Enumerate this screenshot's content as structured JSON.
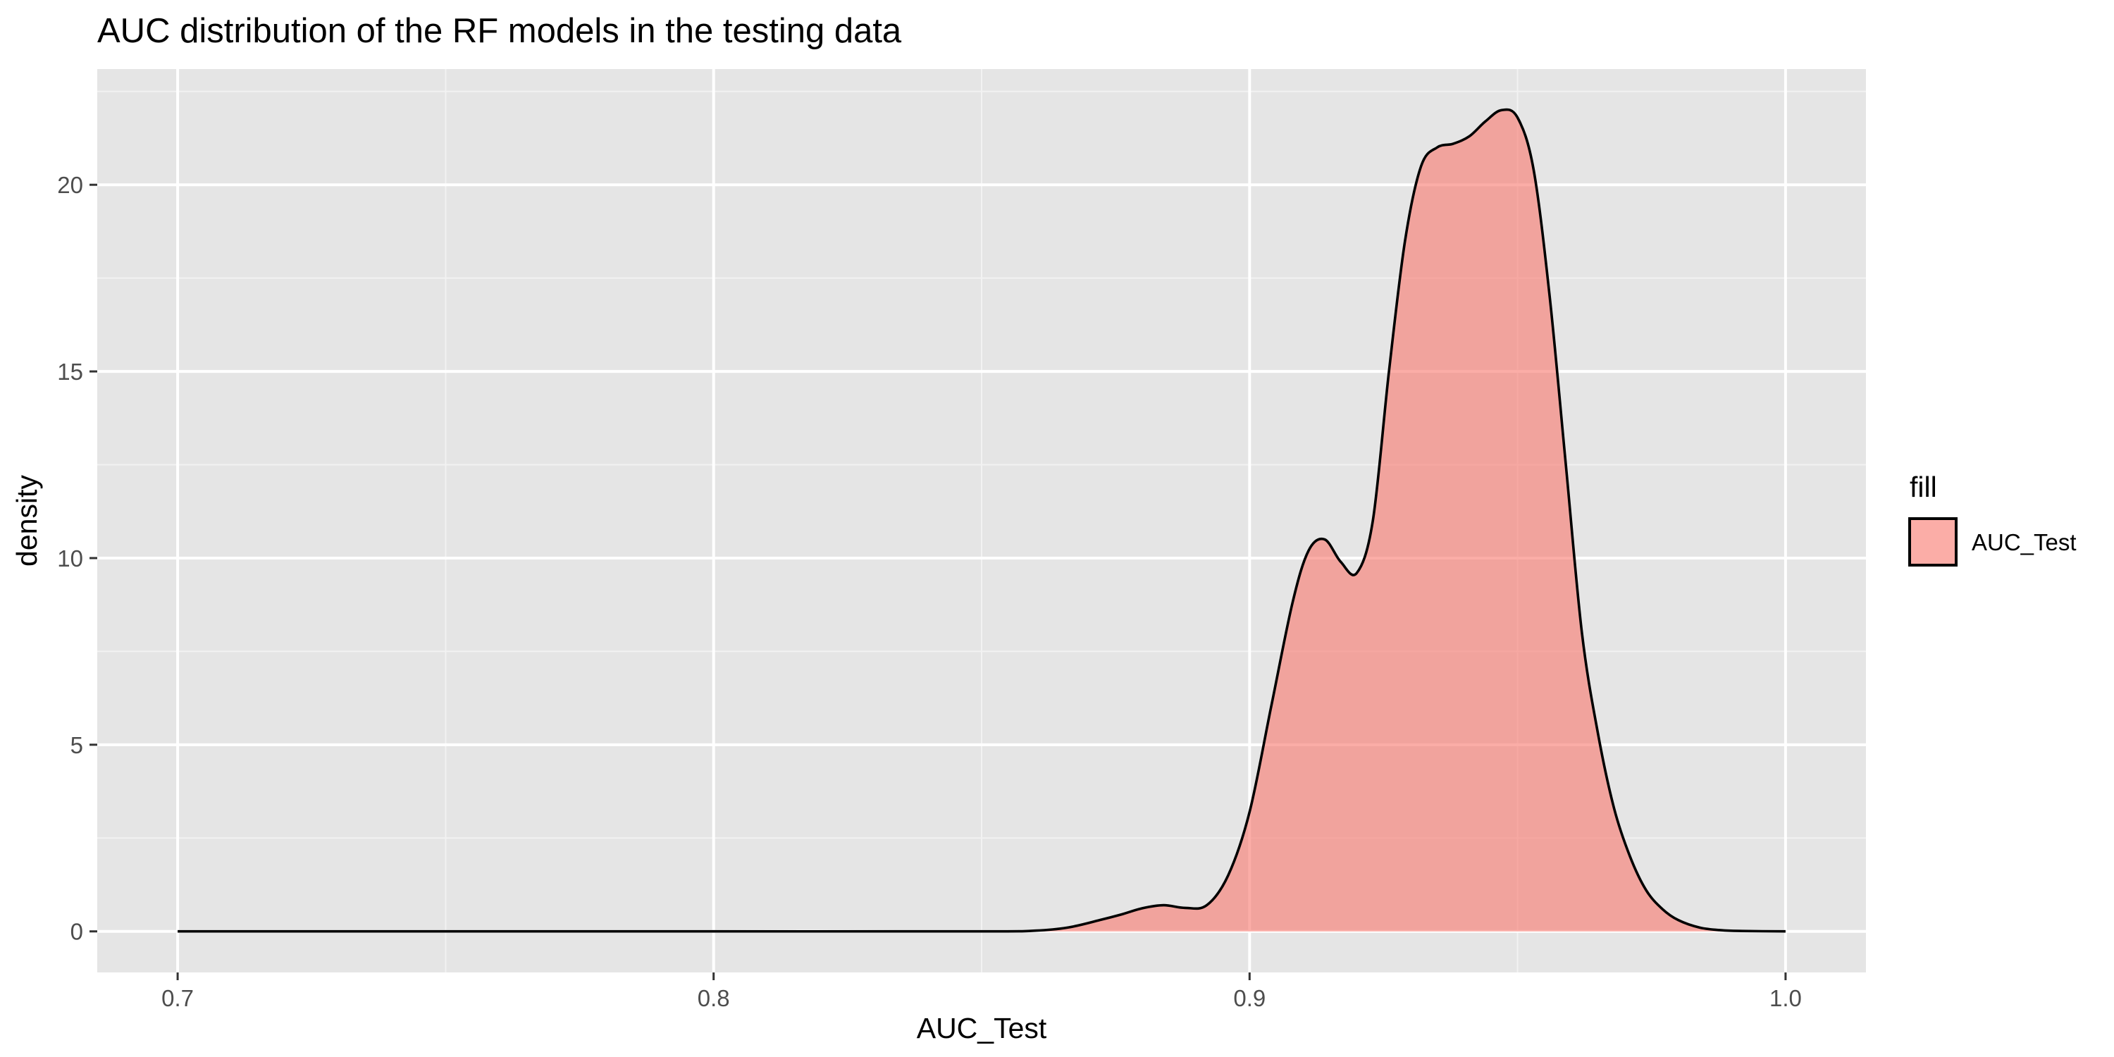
{
  "chart_data": {
    "type": "area",
    "title": "AUC distribution of the RF models in the testing data",
    "xlabel": "AUC_Test",
    "ylabel": "density",
    "xlim": [
      0.685,
      1.015
    ],
    "ylim": [
      -1.1,
      23.1
    ],
    "x_ticks": [
      0.7,
      0.8,
      0.9,
      1.0
    ],
    "x_tick_labels": [
      "0.7",
      "0.8",
      "0.9",
      "1.0"
    ],
    "y_ticks": [
      0,
      5,
      10,
      15,
      20
    ],
    "y_tick_labels": [
      "0",
      "5",
      "10",
      "15",
      "20"
    ],
    "grid": true,
    "legend": {
      "title": "fill",
      "position": "right",
      "entries": [
        "AUC_Test"
      ]
    },
    "series": [
      {
        "name": "AUC_Test",
        "fill_color": "#F8766D",
        "fill_opacity": 0.6,
        "line_color": "#000000",
        "x": [
          0.7,
          0.75,
          0.8,
          0.85,
          0.86,
          0.866,
          0.872,
          0.876,
          0.88,
          0.884,
          0.888,
          0.892,
          0.896,
          0.9,
          0.904,
          0.908,
          0.911,
          0.914,
          0.917,
          0.92,
          0.923,
          0.926,
          0.929,
          0.932,
          0.935,
          0.938,
          0.941,
          0.944,
          0.947,
          0.95,
          0.953,
          0.956,
          0.959,
          0.962,
          0.965,
          0.968,
          0.971,
          0.974,
          0.977,
          0.98,
          0.984,
          0.988,
          0.992,
          1.0
        ],
        "y": [
          0,
          0,
          0,
          0,
          0.02,
          0.1,
          0.3,
          0.45,
          0.62,
          0.7,
          0.63,
          0.7,
          1.5,
          3.2,
          6.0,
          8.8,
          10.2,
          10.5,
          9.9,
          9.6,
          11.0,
          15.0,
          18.5,
          20.5,
          21.0,
          21.1,
          21.3,
          21.7,
          22.0,
          21.8,
          20.4,
          17.0,
          12.5,
          8.0,
          5.3,
          3.3,
          2.0,
          1.1,
          0.6,
          0.3,
          0.1,
          0.03,
          0.01,
          0
        ]
      }
    ]
  }
}
